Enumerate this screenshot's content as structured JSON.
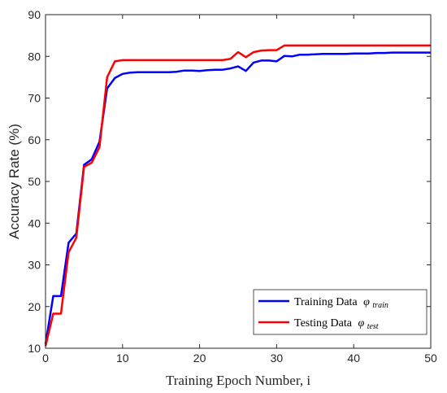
{
  "chart_data": {
    "type": "line",
    "xlabel": "Training Epoch Number, i",
    "ylabel": "Accuracy Rate (%)",
    "xlim": [
      0,
      50
    ],
    "ylim": [
      10,
      90
    ],
    "xticks": [
      0,
      10,
      20,
      30,
      40,
      50
    ],
    "yticks": [
      10,
      20,
      30,
      40,
      50,
      60,
      70,
      80,
      90
    ],
    "grid": false,
    "legend_position": "bottom-right",
    "series": [
      {
        "name": "Training Data",
        "legend_symbol": "φ",
        "legend_subscript": "train",
        "color": "#0000ff",
        "x": [
          0,
          1,
          2,
          3,
          4,
          5,
          6,
          7,
          8,
          9,
          10,
          11,
          12,
          13,
          14,
          15,
          16,
          17,
          18,
          19,
          20,
          21,
          22,
          23,
          24,
          25,
          26,
          27,
          28,
          29,
          30,
          31,
          32,
          33,
          34,
          35,
          36,
          37,
          38,
          39,
          40,
          41,
          42,
          43,
          44,
          45,
          46,
          47,
          48,
          49,
          50
        ],
        "y": [
          11,
          22.5,
          22.5,
          35.3,
          37.5,
          54,
          55.3,
          59.5,
          72.3,
          74.8,
          75.8,
          76.1,
          76.2,
          76.2,
          76.2,
          76.2,
          76.2,
          76.3,
          76.6,
          76.6,
          76.5,
          76.7,
          76.8,
          76.8,
          77.1,
          77.6,
          76.5,
          78.5,
          79,
          79,
          78.8,
          80.1,
          80,
          80.4,
          80.4,
          80.5,
          80.6,
          80.6,
          80.6,
          80.6,
          80.7,
          80.7,
          80.7,
          80.8,
          80.8,
          80.9,
          80.9,
          80.9,
          80.9,
          80.9,
          80.9
        ]
      },
      {
        "name": "Testing Data",
        "legend_symbol": "φ",
        "legend_subscript": "test",
        "color": "#ff0000",
        "x": [
          0,
          1,
          2,
          3,
          4,
          5,
          6,
          7,
          8,
          9,
          10,
          11,
          12,
          13,
          14,
          15,
          16,
          17,
          18,
          19,
          20,
          21,
          22,
          23,
          24,
          25,
          26,
          27,
          28,
          29,
          30,
          31,
          32,
          33,
          34,
          35,
          36,
          37,
          38,
          39,
          40,
          41,
          42,
          43,
          44,
          45,
          46,
          47,
          48,
          49,
          50
        ],
        "y": [
          10.5,
          18.3,
          18.3,
          33,
          36.5,
          53.5,
          54.5,
          58.2,
          75,
          78.8,
          79.1,
          79.1,
          79.1,
          79.1,
          79.1,
          79.1,
          79.1,
          79.1,
          79.1,
          79.1,
          79.1,
          79.1,
          79.1,
          79.1,
          79.4,
          81,
          79.8,
          81,
          81.4,
          81.5,
          81.5,
          82.6,
          82.6,
          82.6,
          82.6,
          82.6,
          82.6,
          82.6,
          82.6,
          82.6,
          82.6,
          82.6,
          82.6,
          82.6,
          82.6,
          82.6,
          82.6,
          82.6,
          82.6,
          82.6,
          82.6
        ]
      }
    ]
  }
}
